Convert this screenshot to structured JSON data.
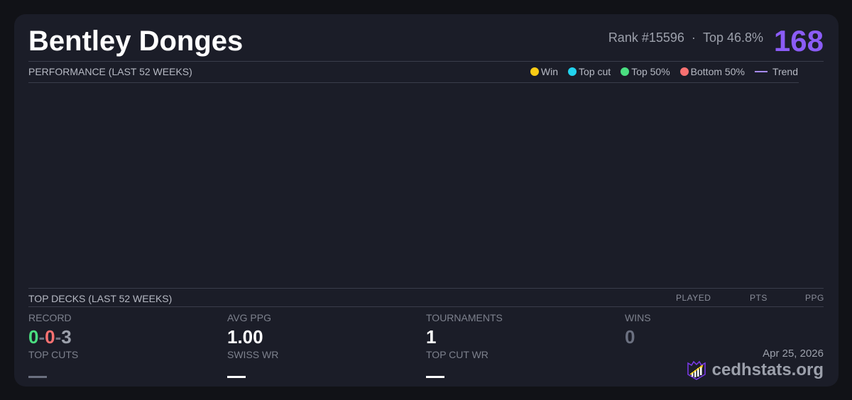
{
  "player": {
    "name": "Bentley Donges",
    "rank": "Rank #15596",
    "separator": "·",
    "top_pct": "Top 46.8%",
    "score": "168"
  },
  "performance": {
    "title": "PERFORMANCE (LAST 52 WEEKS)",
    "legend": [
      {
        "label": "Win",
        "color": "#facc15"
      },
      {
        "label": "Top cut",
        "color": "#22d3ee"
      },
      {
        "label": "Top 50%",
        "color": "#4ade80"
      },
      {
        "label": "Bottom 50%",
        "color": "#f87171"
      },
      {
        "label": "Trend",
        "color": "#a78bfa"
      }
    ]
  },
  "decks": {
    "title": "TOP DECKS (LAST 52 WEEKS)",
    "columns": [
      "PLAYED",
      "PTS",
      "PPG"
    ]
  },
  "stats": {
    "record": {
      "label": "RECORD",
      "wins": "0",
      "losses": "0",
      "draws": "3",
      "sep": "-"
    },
    "avg_ppg": {
      "label": "AVG PPG",
      "value": "1.00"
    },
    "tournaments": {
      "label": "TOURNAMENTS",
      "value": "1"
    },
    "wins": {
      "label": "WINS",
      "value": "0"
    },
    "top_cuts": {
      "label": "TOP CUTS",
      "value": "—"
    },
    "swiss_wr": {
      "label": "SWISS WR",
      "value": "—"
    },
    "top_cut_wr": {
      "label": "TOP CUT WR",
      "value": "—"
    }
  },
  "footer": {
    "date": "Apr 25, 2026",
    "brand": "cedhstats.org"
  }
}
